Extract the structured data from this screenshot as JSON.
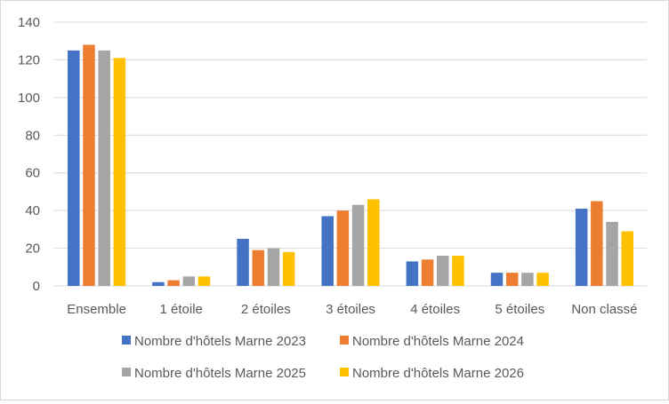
{
  "chart_data": {
    "type": "bar",
    "title": "",
    "xlabel": "",
    "ylabel": "",
    "ylim": [
      0,
      140
    ],
    "yticks": [
      0,
      20,
      40,
      60,
      80,
      100,
      120,
      140
    ],
    "grid": true,
    "legend_position": "bottom",
    "categories": [
      "Ensemble",
      "1 étoile",
      "2 étoiles",
      "3 étoiles",
      "4 étoiles",
      "5 étoiles",
      "Non classé"
    ],
    "series": [
      {
        "name": "Nombre d'hôtels Marne 2023",
        "color": "#4472C4",
        "values": [
          125,
          2,
          25,
          37,
          13,
          7,
          41
        ]
      },
      {
        "name": "Nombre d'hôtels Marne 2024",
        "color": "#ED7D31",
        "values": [
          128,
          3,
          19,
          40,
          14,
          7,
          45
        ]
      },
      {
        "name": "Nombre d'hôtels Marne 2025",
        "color": "#A5A5A5",
        "values": [
          125,
          5,
          20,
          43,
          16,
          7,
          34
        ]
      },
      {
        "name": "Nombre d'hôtels Marne 2026",
        "color": "#FFC000",
        "values": [
          121,
          5,
          18,
          46,
          16,
          7,
          29
        ]
      }
    ]
  }
}
